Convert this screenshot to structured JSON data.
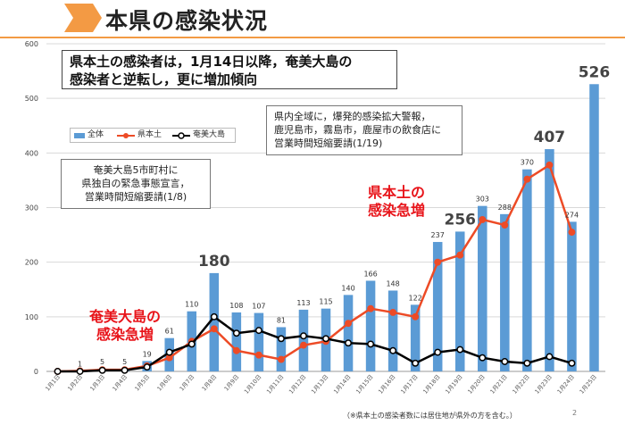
{
  "header": {
    "title": "本県の感染状況",
    "accent_color": "#f39a44"
  },
  "callouts": {
    "main_line1": "県本土の感染者は，1月14日以降，奄美大島の",
    "main_line2": "感染者と逆転し，更に増加傾向",
    "kagoshima_line1": "県内全域に，爆発的感染拡大警報，",
    "kagoshima_line2": "鹿児島市，霧島市，鹿屋市の飲食店に",
    "kagoshima_line3": "営業時間短縮要請(1/19)",
    "amami_line1": "奄美大島5市町村に",
    "amami_line2": "県独自の緊急事態宣言，",
    "amami_line3": "営業時間短縮要請(1/8)"
  },
  "annotations": {
    "mainland_line1": "県本土の",
    "mainland_line2": "感染急増",
    "amami_line1": "奄美大島の",
    "amami_line2": "感染急増"
  },
  "footnote": "（※県本土の感染者数には居住地が県外の方を含む。）",
  "page_number": "2",
  "colors": {
    "total": "#5b9bd5",
    "mainland": "#ed4b26",
    "amami": "#000000",
    "grid": "#d9d9d9"
  },
  "chart_data": {
    "type": "bar",
    "categories": [
      "1月1日",
      "1月2日",
      "1月3日",
      "1月4日",
      "1月5日",
      "1月6日",
      "1月7日",
      "1月8日",
      "1月9日",
      "1月10日",
      "1月11日",
      "1月12日",
      "1月13日",
      "1月14日",
      "1月15日",
      "1月16日",
      "1月17日",
      "1月18日",
      "1月19日",
      "1月20日",
      "1月21日",
      "1月22日",
      "1月23日",
      "1月24日",
      "1月25日"
    ],
    "series": [
      {
        "name": "全体",
        "kind": "bar",
        "values": [
          0,
          1,
          5,
          5,
          19,
          61,
          110,
          180,
          108,
          107,
          81,
          113,
          115,
          140,
          166,
          148,
          122,
          237,
          256,
          303,
          288,
          370,
          407,
          274,
          526
        ]
      },
      {
        "name": "県本土",
        "kind": "line",
        "values": [
          0,
          1,
          3,
          3,
          10,
          25,
          55,
          78,
          38,
          30,
          22,
          48,
          55,
          88,
          115,
          108,
          100,
          200,
          213,
          278,
          268,
          352,
          378,
          255,
          null
        ]
      },
      {
        "name": "奄美大島",
        "kind": "line",
        "values": [
          0,
          0,
          2,
          2,
          8,
          35,
          50,
          100,
          70,
          75,
          60,
          65,
          60,
          52,
          50,
          38,
          15,
          35,
          40,
          25,
          18,
          15,
          27,
          15,
          null
        ]
      }
    ],
    "data_labels": [
      "",
      "1",
      "5",
      "5",
      "19",
      "61",
      "110",
      "180",
      "108",
      "107",
      "81",
      "113",
      "115",
      "140",
      "166",
      "148",
      "122",
      "237",
      "256",
      "303",
      "288",
      "370",
      "407",
      "274",
      "526"
    ],
    "large_label_indices": [
      7,
      18,
      22,
      24
    ],
    "ylim": [
      0,
      600
    ],
    "yticks": [
      0,
      100,
      200,
      300,
      400,
      500,
      600
    ],
    "legend_position": "top-left",
    "grid": true
  }
}
